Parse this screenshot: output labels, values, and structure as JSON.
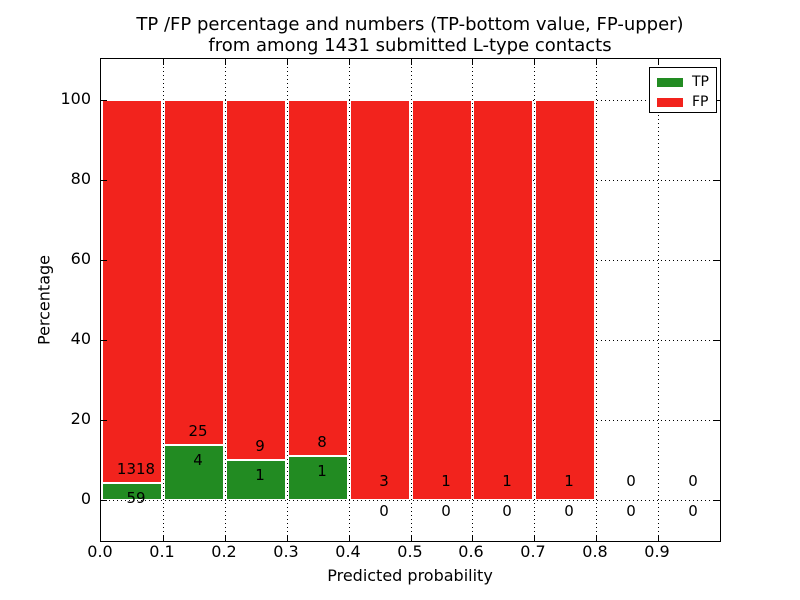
{
  "title": {
    "line1": "TP /FP percentage and numbers (TP-bottom value, FP-upper)",
    "line2": "from among 1431 submitted L-type contacts"
  },
  "axes": {
    "xlabel": "Predicted probability",
    "ylabel": "Percentage",
    "x_tick_labels": [
      "0.0",
      "0.1",
      "0.2",
      "0.3",
      "0.4",
      "0.5",
      "0.6",
      "0.7",
      "0.8",
      "0.9"
    ],
    "x_tick_values": [
      0,
      0.1,
      0.2,
      0.3,
      0.4,
      0.5,
      0.6,
      0.7,
      0.8,
      0.9
    ],
    "y_tick_labels": [
      "0",
      "20",
      "40",
      "60",
      "80",
      "100"
    ],
    "y_tick_values": [
      0,
      20,
      40,
      60,
      80,
      100
    ],
    "xlim": [
      0.0,
      1.0
    ],
    "ylim": [
      -10,
      110
    ],
    "grid": true,
    "grid_style": "dotted"
  },
  "legend": {
    "position": "upper right",
    "items": [
      {
        "label": "TP",
        "color": "#228b22"
      },
      {
        "label": "FP",
        "color": "#f2231d"
      }
    ]
  },
  "chart_data": {
    "type": "bar",
    "stacked": true,
    "normalized": "each non-empty bin totals 100%",
    "total_contacts": 1431,
    "bin_width": 0.1,
    "bin_starts": [
      0.0,
      0.1,
      0.2,
      0.3,
      0.4,
      0.5,
      0.6,
      0.7,
      0.8,
      0.9
    ],
    "series": [
      {
        "name": "TP",
        "color": "#228b22",
        "counts": [
          59,
          4,
          1,
          1,
          0,
          0,
          0,
          0,
          0,
          0
        ]
      },
      {
        "name": "FP",
        "color": "#f2231d",
        "counts": [
          1318,
          25,
          9,
          8,
          3,
          1,
          1,
          1,
          0,
          0
        ]
      }
    ],
    "tp_percent_of_bin": [
      4.28,
      13.79,
      10.0,
      11.11,
      0,
      0,
      0,
      0,
      null,
      null
    ]
  }
}
